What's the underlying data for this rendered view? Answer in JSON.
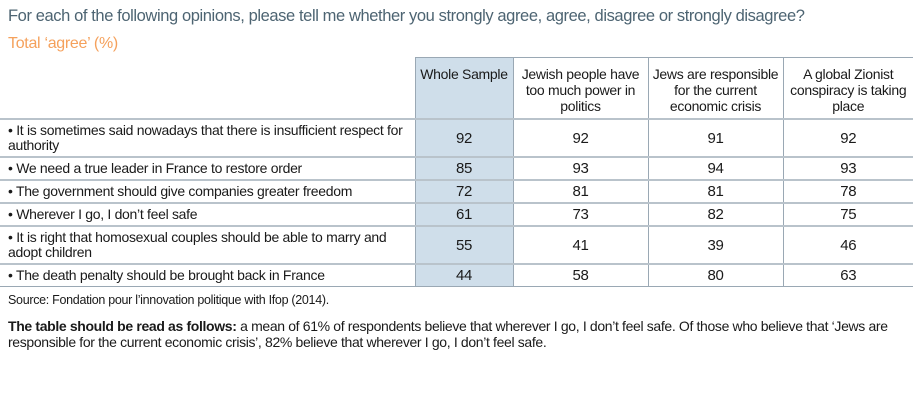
{
  "question": "For each of the following opinions, please tell me whether you strongly agree, agree, disagree or strongly disagree?",
  "subtitle": "Total ‘agree’ (%)",
  "columns": [
    "Whole Sample",
    "Jewish people have too much power in politics",
    "Jews are responsible for the current economic crisis",
    "A global Zionist conspiracy is taking place"
  ],
  "rows": [
    {
      "label": "• It is sometimes said nowadays that there is insufficient respect for authority",
      "values": [
        "92",
        "92",
        "91",
        "92"
      ]
    },
    {
      "label": "• We need a true leader in France to restore order",
      "values": [
        "85",
        "93",
        "94",
        "93"
      ]
    },
    {
      "label": "• The government should give companies greater freedom",
      "values": [
        "72",
        "81",
        "81",
        "78"
      ]
    },
    {
      "label": "• Wherever I go, I don’t feel safe",
      "values": [
        "61",
        "73",
        "82",
        "75"
      ]
    },
    {
      "label": "• It is right that homosexual couples should be able to marry and adopt children",
      "values": [
        "55",
        "41",
        "39",
        "46"
      ]
    },
    {
      "label": "• The death penalty should be brought back in France",
      "values": [
        "44",
        "58",
        "80",
        "63"
      ]
    }
  ],
  "source": "Source: Fondation pour l’innovation politique with Ifop (2014).",
  "note_bold": "The table should be read as follows:",
  "note_text": " a mean of 61% of respondents believe that wherever I go, I don’t feel safe. Of those who believe that ‘Jews are responsible for the current economic crisis’, 82% believe that wherever I go, I don’t feel safe."
}
